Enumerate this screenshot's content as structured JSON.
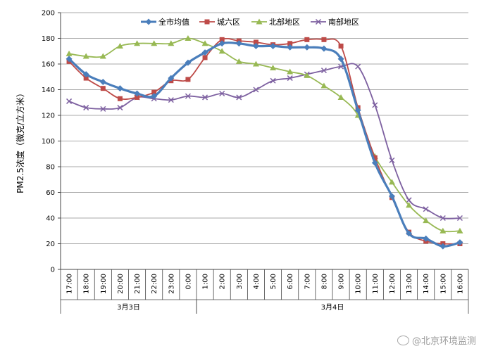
{
  "chart_data": {
    "type": "line",
    "title": "",
    "ylabel": "PM2.5浓度（微克/立方米）",
    "ylim": [
      0,
      200
    ],
    "yticks": [
      0,
      20,
      40,
      60,
      80,
      100,
      120,
      140,
      160,
      180,
      200
    ],
    "categories": [
      "17:00",
      "18:00",
      "19:00",
      "20:00",
      "21:00",
      "22:00",
      "23:00",
      "0:00",
      "1:00",
      "2:00",
      "3:00",
      "4:00",
      "5:00",
      "6:00",
      "7:00",
      "8:00",
      "9:00",
      "10:00",
      "11:00",
      "12:00",
      "13:00",
      "14:00",
      "15:00",
      "16:00"
    ],
    "day_groups": [
      {
        "label": "3月3日",
        "start": 0,
        "end": 7
      },
      {
        "label": "3月4日",
        "start": 8,
        "end": 23
      }
    ],
    "legend_position": "top",
    "grid": true,
    "series": [
      {
        "name": "全市均值",
        "color": "#4a7ebb",
        "marker": "diamond",
        "values": [
          164,
          152,
          146,
          141,
          137,
          135,
          149,
          161,
          169,
          176,
          176,
          174,
          174,
          173,
          173,
          172,
          164,
          124,
          83,
          57,
          28,
          24,
          18,
          21
        ]
      },
      {
        "name": "城六区",
        "color": "#be4b48",
        "marker": "square",
        "values": [
          162,
          149,
          141,
          133,
          134,
          138,
          147,
          148,
          165,
          179,
          178,
          177,
          175,
          176,
          179,
          179,
          174,
          126,
          87,
          56,
          29,
          22,
          20,
          20
        ]
      },
      {
        "name": "北部地区",
        "color": "#98b954",
        "marker": "triangle",
        "values": [
          168,
          166,
          166,
          174,
          176,
          176,
          176,
          180,
          176,
          170,
          162,
          160,
          157,
          154,
          151,
          143,
          134,
          120,
          88,
          68,
          50,
          38,
          30,
          30
        ]
      },
      {
        "name": "南部地区",
        "color": "#7d60a0",
        "marker": "cross",
        "values": [
          131,
          126,
          125,
          126,
          134,
          133,
          132,
          135,
          134,
          137,
          134,
          140,
          147,
          149,
          152,
          155,
          158,
          158,
          128,
          85,
          54,
          47,
          40,
          40
        ]
      }
    ]
  },
  "watermark": {
    "text": "北京环境监测"
  }
}
